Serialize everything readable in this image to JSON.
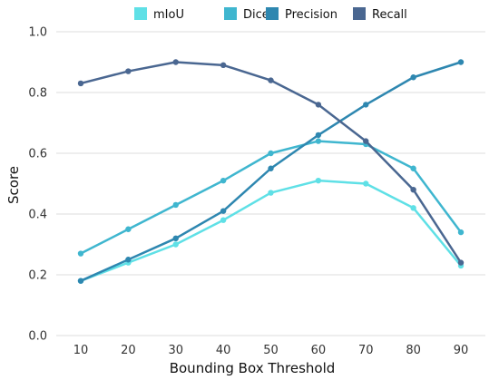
{
  "chart_data": {
    "type": "line",
    "xlabel": "Bounding Box Threshold",
    "ylabel": "Score",
    "x": [
      10,
      20,
      30,
      40,
      50,
      60,
      70,
      80,
      90
    ],
    "ylim": [
      0.0,
      1.0
    ],
    "yticks": [
      "0.0",
      "0.2",
      "0.4",
      "0.6",
      "0.8",
      "1.0"
    ],
    "grid": "horizontal",
    "legend_position": "top",
    "series": [
      {
        "name": "mIoU",
        "color": "#5fe0e6",
        "values": [
          0.18,
          0.24,
          0.3,
          0.38,
          0.47,
          0.51,
          0.5,
          0.42,
          0.23
        ]
      },
      {
        "name": "Dice",
        "color": "#3fb6cf",
        "values": [
          0.27,
          0.35,
          0.43,
          0.51,
          0.6,
          0.64,
          0.63,
          0.55,
          0.34
        ]
      },
      {
        "name": "Precision",
        "color": "#2e87b0",
        "values": [
          0.18,
          0.25,
          0.32,
          0.41,
          0.55,
          0.66,
          0.76,
          0.85,
          0.9
        ]
      },
      {
        "name": "Recall",
        "color": "#4a6791",
        "values": [
          0.83,
          0.87,
          0.9,
          0.89,
          0.84,
          0.76,
          0.64,
          0.48,
          0.24
        ]
      }
    ]
  }
}
